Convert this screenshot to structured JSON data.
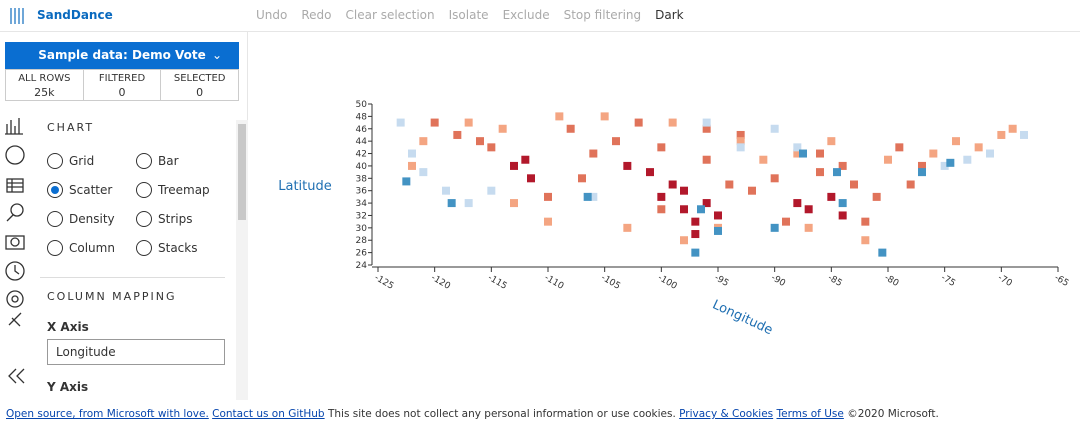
{
  "toolbar": {
    "app_name": "SandDance",
    "buttons": [
      "Undo",
      "Redo",
      "Clear selection",
      "Isolate",
      "Exclude",
      "Stop filtering",
      "Dark"
    ]
  },
  "sidebar": {
    "dataset": "Sample data: Demo Vote",
    "stats": [
      {
        "label": "ALL ROWS",
        "value": "25k"
      },
      {
        "label": "FILTERED",
        "value": "0"
      },
      {
        "label": "SELECTED",
        "value": "0"
      }
    ],
    "chart_section": "CHART",
    "chart_types": [
      "Grid",
      "Bar",
      "Scatter",
      "Treemap",
      "Density",
      "Strips",
      "Column",
      "Stacks"
    ],
    "selected_chart": 2,
    "mapping_section": "COLUMN MAPPING",
    "x_axis_label": "X Axis",
    "x_axis_value": "Longitude",
    "y_axis_label": "Y Axis"
  },
  "chart_data": {
    "type": "scatter",
    "x_label": "Longitude",
    "y_label": "Latitude",
    "xlim": [
      -125,
      -65
    ],
    "ylim": [
      24,
      50
    ],
    "xticks": [
      -125,
      -120,
      -115,
      -110,
      -105,
      -100,
      -95,
      -90,
      -85,
      -80,
      -75,
      -70,
      -65
    ],
    "yticks": [
      24,
      26,
      28,
      30,
      32,
      34,
      36,
      38,
      40,
      42,
      44,
      46,
      48,
      50
    ],
    "series": [
      {
        "color": "#b2182b",
        "x": [
          -112,
          -111.5,
          -113,
          -100,
          -98,
          -97,
          -99,
          -101,
          -96,
          -95,
          -88,
          -87,
          -85,
          -84,
          -97,
          -98,
          -103
        ],
        "values": [
          41,
          38,
          40,
          35,
          33,
          31,
          37,
          39,
          34,
          32,
          34,
          33,
          35,
          32,
          29,
          36,
          40
        ]
      },
      {
        "color": "#e0735a",
        "x": [
          -118,
          -116,
          -115,
          -108,
          -106,
          -104,
          -102,
          -100,
          -96,
          -94,
          -92,
          -90,
          -86,
          -83,
          -81,
          -82,
          -78,
          -77,
          -79,
          -86,
          -93,
          -96,
          -100,
          -110,
          -120,
          -107,
          -89,
          -84
        ],
        "values": [
          45,
          44,
          43,
          46,
          42,
          44,
          47,
          43,
          41,
          37,
          36,
          38,
          39,
          37,
          35,
          31,
          37,
          40,
          43,
          42,
          45,
          46,
          33,
          35,
          47,
          38,
          31,
          40
        ]
      },
      {
        "color": "#f4a582",
        "x": [
          -121,
          -117,
          -114,
          -109,
          -105,
          -103,
          -99,
          -93,
          -91,
          -88,
          -85,
          -80,
          -76,
          -74,
          -72,
          -70,
          -69,
          -98,
          -110,
          -113,
          -122,
          -95,
          -87,
          -82
        ],
        "values": [
          44,
          47,
          46,
          48,
          48,
          30,
          47,
          44,
          41,
          42,
          44,
          41,
          42,
          44,
          43,
          45,
          46,
          28,
          31,
          34,
          40,
          30,
          30,
          28
        ]
      },
      {
        "color": "#c6dbef",
        "x": [
          -123,
          -121,
          -122,
          -119,
          -117,
          -115,
          -106,
          -96,
          -90,
          -88,
          -71,
          -73,
          -68,
          -75,
          -93
        ],
        "values": [
          47,
          39,
          42,
          36,
          34,
          36,
          35,
          47,
          46,
          43,
          42,
          41,
          45,
          40,
          43
        ]
      },
      {
        "color": "#4393c3",
        "x": [
          -122.5,
          -118.5,
          -97,
          -95,
          -90,
          -84,
          -80.5,
          -77,
          -106.5,
          -87.5,
          -74.5,
          -96.5,
          -84.5
        ],
        "values": [
          37.5,
          34,
          26,
          29.5,
          30,
          34,
          26,
          39,
          35,
          42,
          40.5,
          33,
          39
        ]
      }
    ]
  },
  "footer": {
    "segments": [
      {
        "text": "Open source, from Microsoft with love.",
        "link": true
      },
      {
        "text": "Contact us on GitHub",
        "link": true
      },
      {
        "text": "This site does not collect any personal information or use cookies.",
        "link": false
      },
      {
        "text": "Privacy & Cookies",
        "link": true
      },
      {
        "text": "Terms of Use",
        "link": true
      },
      {
        "text": "©2020 Microsoft.",
        "link": false
      }
    ]
  }
}
